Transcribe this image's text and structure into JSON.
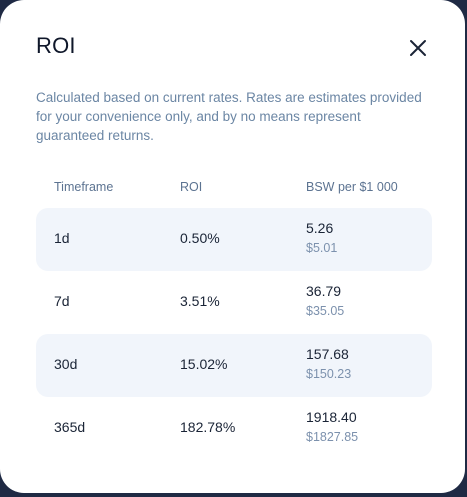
{
  "modal": {
    "title": "ROI",
    "description": "Calculated based on current rates. Rates are estimates provided for your convenience only, and by no means represent guaranteed returns.",
    "close_icon": "close-icon"
  },
  "table": {
    "headers": [
      "Timeframe",
      "ROI",
      "BSW per $1 000"
    ],
    "rows": [
      {
        "timeframe": "1d",
        "roi": "0.50%",
        "value": "5.26",
        "usd": "$5.01"
      },
      {
        "timeframe": "7d",
        "roi": "3.51%",
        "value": "36.79",
        "usd": "$35.05"
      },
      {
        "timeframe": "30d",
        "roi": "15.02%",
        "value": "157.68",
        "usd": "$150.23"
      },
      {
        "timeframe": "365d",
        "roi": "182.78%",
        "value": "1918.40",
        "usd": "$1827.85"
      }
    ]
  },
  "colors": {
    "backdrop": "#1f2a44",
    "surface": "#ffffff",
    "row_shade": "#f1f5fb",
    "text_primary": "#1a2436",
    "text_muted": "#6b86a4"
  }
}
